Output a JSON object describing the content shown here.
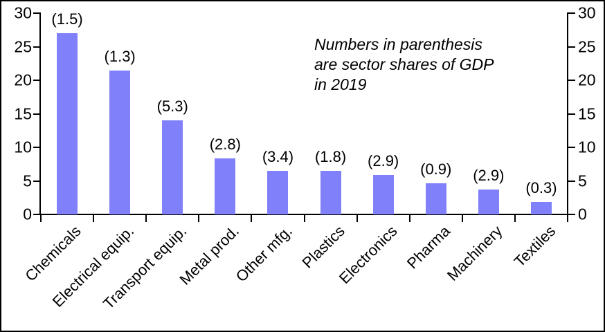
{
  "chart_data": {
    "type": "bar",
    "title": "",
    "xlabel": "",
    "ylabel": "",
    "categories": [
      "Chemicals",
      "Electrical equip.",
      "Transport equip.",
      "Metal prod.",
      "Other mfg.",
      "Plastics",
      "Electronics",
      "Pharma",
      "Machinery",
      "Textiles"
    ],
    "values": [
      27.0,
      21.4,
      14.0,
      8.4,
      6.5,
      6.5,
      5.9,
      4.6,
      3.7,
      1.9
    ],
    "bar_labels": [
      "(1.5)",
      "(1.3)",
      "(5.3)",
      "(2.8)",
      "(3.4)",
      "(1.8)",
      "(2.9)",
      "(0.9)",
      "(2.9)",
      "(0.3)"
    ],
    "ylim": [
      0,
      30
    ],
    "yticks": [
      0,
      5,
      10,
      15,
      20,
      25,
      30
    ],
    "dual_axis": true,
    "grid": false,
    "legend": "none",
    "bar_color": "#8080FA",
    "axis_color": "#000000",
    "annotation": {
      "lines": [
        "Numbers in parenthesis",
        "are sector shares of GDP",
        "in 2019"
      ]
    }
  }
}
